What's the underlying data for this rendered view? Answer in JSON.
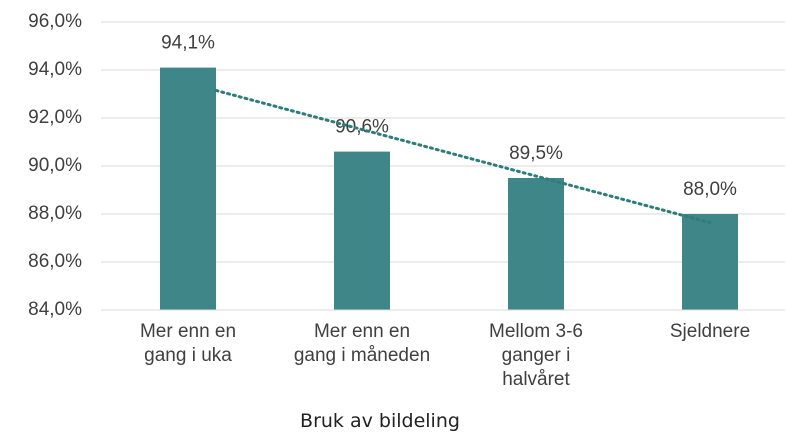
{
  "chart_data": {
    "type": "bar",
    "xlabel": "Bruk av bildeling",
    "categories": [
      "Mer enn en\ngang i uka",
      "Mer enn en\ngang i måneden",
      "Mellom 3-6\nganger i\nhalvåret",
      "Sjeldnere"
    ],
    "values": [
      94.1,
      90.6,
      89.5,
      88.0
    ],
    "value_labels": [
      "94,1%",
      "90,6%",
      "89,5%",
      "88,0%"
    ],
    "color": "#3f8688",
    "trendline": {
      "type": "linear",
      "color": "#2e7d7a"
    },
    "ylim": [
      84,
      96
    ],
    "yticks": [
      {
        "value": 84,
        "label": "84,0%"
      },
      {
        "value": 86,
        "label": "86,0%"
      },
      {
        "value": 88,
        "label": "88,0%"
      },
      {
        "value": 90,
        "label": "90,0%"
      },
      {
        "value": 92,
        "label": "92,0%"
      },
      {
        "value": 94,
        "label": "94,0%"
      },
      {
        "value": 96,
        "label": "96,0%"
      }
    ],
    "grid": true
  }
}
